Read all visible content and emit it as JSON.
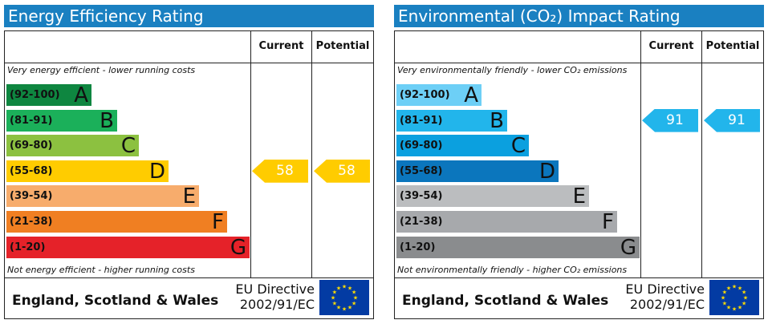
{
  "colors": {
    "header_blue": "#1a80c1",
    "efficiency_bands": [
      "#0e8640",
      "#1bb05a",
      "#8cc140",
      "#ffcc00",
      "#f7ac6c",
      "#f07f22",
      "#e52229"
    ],
    "environmental_bands": [
      "#6dcff6",
      "#22b5eb",
      "#0ba0df",
      "#0b76bd",
      "#bbbdbf",
      "#a7a9ac",
      "#8a8c8e"
    ],
    "eu_flag_blue": "#033ba3",
    "eu_flag_stars": "#ffdd00"
  },
  "charts": [
    {
      "title": "Energy Efficiency Rating",
      "col_current": "Current",
      "col_potential": "Potential",
      "top_note": "Very energy efficient - lower running costs",
      "bottom_note": "Not energy efficient - higher running costs",
      "country": "England, Scotland & Wales",
      "directive_line1": "EU Directive",
      "directive_line2": "2002/91/EC",
      "flag_icon": "eu-flag-icon"
    },
    {
      "title": "Environmental (CO₂) Impact Rating",
      "col_current": "Current",
      "col_potential": "Potential",
      "top_note": "Very environmentally friendly - lower CO₂ emissions",
      "bottom_note": "Not environmentally friendly - higher CO₂ emissions",
      "country": "England, Scotland & Wales",
      "directive_line1": "EU Directive",
      "directive_line2": "2002/91/EC",
      "flag_icon": "eu-flag-icon"
    }
  ],
  "chart_data": [
    {
      "type": "bar",
      "title": "Energy Efficiency Rating",
      "categories": [
        "A",
        "B",
        "C",
        "D",
        "E",
        "F",
        "G"
      ],
      "ranges": [
        "(92-100)",
        "(81-91)",
        "(69-80)",
        "(55-68)",
        "(39-54)",
        "(21-38)",
        "(1-20)"
      ],
      "current": 58,
      "potential": 58,
      "current_band": "D",
      "potential_band": "D"
    },
    {
      "type": "bar",
      "title": "Environmental (CO₂) Impact Rating",
      "categories": [
        "A",
        "B",
        "C",
        "D",
        "E",
        "F",
        "G"
      ],
      "ranges": [
        "(92-100)",
        "(81-91)",
        "(69-80)",
        "(55-68)",
        "(39-54)",
        "(21-38)",
        "(1-20)"
      ],
      "current": 91,
      "potential": 91,
      "current_band": "B",
      "potential_band": "B"
    }
  ]
}
